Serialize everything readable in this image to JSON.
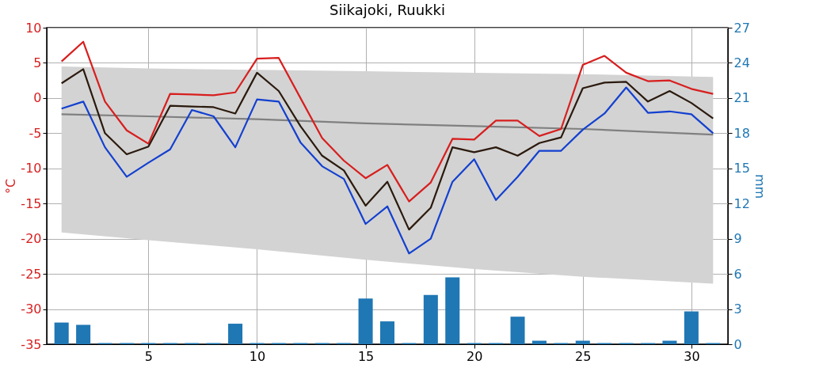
{
  "chart_data": {
    "type": "line",
    "title": "Siikajoki, Ruukki",
    "ylabel": "°C",
    "y2label": "mm",
    "x": [
      1,
      2,
      3,
      4,
      5,
      6,
      7,
      8,
      9,
      10,
      11,
      12,
      13,
      14,
      15,
      16,
      17,
      18,
      19,
      20,
      21,
      22,
      23,
      24,
      25,
      26,
      27,
      28,
      29,
      30,
      31
    ],
    "xlim": [
      0.5,
      31.5
    ],
    "xticks": [
      5,
      10,
      15,
      20,
      25,
      30
    ],
    "ylim": [
      -35,
      10
    ],
    "yticks": [
      -35,
      -30,
      -25,
      -20,
      -15,
      -10,
      -5,
      0,
      5,
      10
    ],
    "y2lim": [
      0,
      27
    ],
    "y2ticks": [
      0,
      3,
      6,
      9,
      12,
      15,
      18,
      21,
      24,
      27
    ],
    "grid": true,
    "marker": "none",
    "line_style": "solid",
    "series": [
      {
        "color": "#808080",
        "x": [
          1,
          5,
          10,
          15,
          20,
          25,
          28,
          31
        ],
        "values": [
          -2.3,
          -2.6,
          -3.0,
          -3.6,
          -4.0,
          -4.4,
          -4.8,
          -5.2
        ],
        "lower": [
          -19.1,
          -20.2,
          -21.5,
          -23.0,
          -24.3,
          -25.4,
          -25.9,
          -26.4
        ],
        "upper": [
          4.5,
          4.2,
          4.0,
          3.8,
          3.6,
          3.4,
          3.2,
          3.0
        ]
      },
      {
        "color": "#d81e1e",
        "values": [
          5.2,
          8.0,
          -0.5,
          -4.6,
          -6.5,
          0.6,
          0.5,
          0.4,
          0.8,
          5.6,
          5.7,
          0.0,
          -5.7,
          -8.9,
          -11.4,
          -9.5,
          -14.7,
          -12.0,
          -5.8,
          -5.9,
          -3.2,
          -3.2,
          -5.4,
          -4.4,
          4.7,
          6.0,
          3.6,
          2.4,
          2.5,
          1.3,
          0.6
        ]
      },
      {
        "color": "#2b1a0e",
        "values": [
          2.1,
          4.1,
          -5.0,
          -8.0,
          -6.9,
          -1.1,
          -1.2,
          -1.3,
          -2.2,
          3.6,
          1.0,
          -4.0,
          -8.2,
          -10.3,
          -15.3,
          -11.9,
          -18.7,
          -15.6,
          -7.0,
          -7.7,
          -7.0,
          -8.2,
          -6.4,
          -5.6,
          1.4,
          2.2,
          2.3,
          -0.5,
          1.0,
          -0.7,
          -2.9
        ]
      },
      {
        "color": "#1340d0",
        "values": [
          -1.5,
          -0.5,
          -7.0,
          -11.2,
          -9.2,
          -7.3,
          -1.7,
          -2.6,
          -7.0,
          -0.2,
          -0.5,
          -6.3,
          -9.7,
          -11.5,
          -17.9,
          -15.4,
          -22.1,
          -20.0,
          -11.9,
          -8.7,
          -14.5,
          -11.2,
          -7.5,
          -7.5,
          -4.5,
          -2.2,
          1.5,
          -2.1,
          -1.9,
          -2.3,
          -5.0
        ]
      },
      {
        "type": "bar",
        "axis": "y2",
        "color": "#1f77b4",
        "values": [
          1.85,
          1.65,
          0.1,
          0.1,
          0.1,
          0.1,
          0.1,
          0.1,
          1.75,
          0.1,
          0.1,
          0.1,
          0.1,
          0.1,
          3.9,
          1.95,
          0.1,
          4.2,
          5.7,
          0.1,
          0.1,
          2.35,
          0.3,
          0.1,
          0.3,
          0.1,
          0.1,
          0.1,
          0.3,
          2.8,
          0.1
        ]
      }
    ]
  }
}
